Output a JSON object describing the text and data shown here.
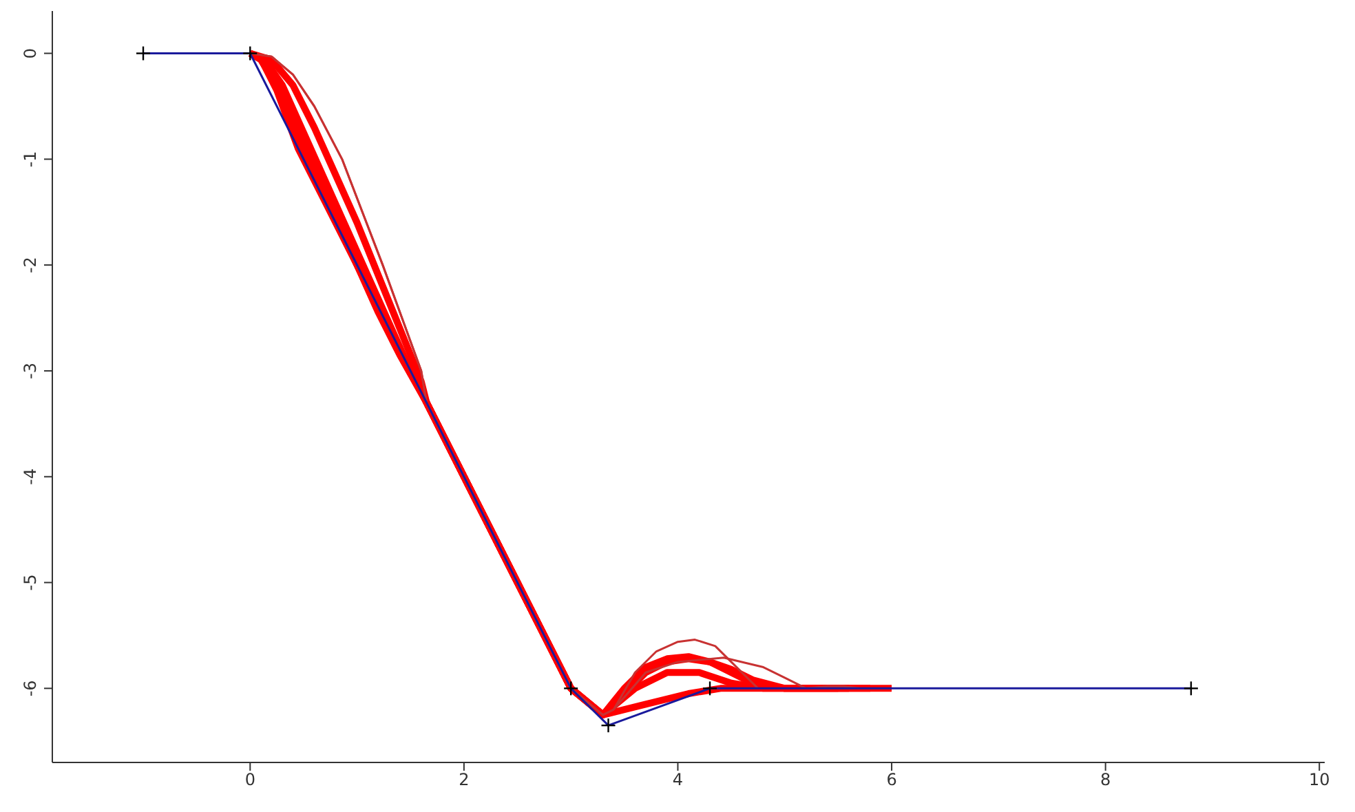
{
  "chart_data": {
    "type": "line",
    "xlim": [
      -1.85,
      10.05
    ],
    "ylim": [
      -6.7,
      0.4
    ],
    "xticks": [
      0,
      2,
      4,
      6,
      8,
      {
        "value": 10,
        "label": "10"
      }
    ],
    "yticks": [
      0,
      -1,
      -2,
      -3,
      -4,
      -5,
      -6
    ],
    "line_style": "solid",
    "series": [
      {
        "color": "#ff0000",
        "marker": "none",
        "x": [
          0,
          0.1,
          0.25,
          0.45,
          0.7,
          1.0,
          1.65,
          2,
          2.5,
          3,
          3.3,
          3.7,
          4.1,
          4.4,
          5.5
        ],
        "values": [
          0,
          -0.05,
          -0.35,
          -0.9,
          -1.4,
          -2.0,
          -3.3,
          -4,
          -5,
          -6,
          -6.25,
          -6.15,
          -6.05,
          -6.0,
          -6
        ]
      },
      {
        "color": "#ff0000",
        "marker": "none",
        "x": [
          0,
          0.1,
          0.25,
          0.4,
          0.6,
          0.8,
          1.0,
          1.2,
          1.4,
          1.65,
          2,
          2.5,
          3,
          3.3,
          3.6,
          3.9,
          4.2,
          4.5,
          4.8,
          5.8
        ],
        "values": [
          0,
          -0.06,
          -0.3,
          -0.65,
          -1.1,
          -1.55,
          -2.0,
          -2.45,
          -2.85,
          -3.3,
          -4,
          -5,
          -6,
          -6.25,
          -6.0,
          -5.85,
          -5.85,
          -5.95,
          -6,
          -6
        ]
      },
      {
        "color": "#ff0000",
        "marker": "none",
        "x": [
          0,
          0.15,
          0.3,
          0.5,
          0.7,
          0.9,
          1.1,
          1.3,
          1.5,
          1.65,
          2,
          2.5,
          3,
          3.3,
          3.5,
          3.7,
          3.9,
          4.1,
          4.3,
          4.5,
          4.7,
          5,
          6
        ],
        "values": [
          0,
          -0.08,
          -0.3,
          -0.75,
          -1.2,
          -1.65,
          -2.1,
          -2.55,
          -3.0,
          -3.3,
          -4,
          -5,
          -6,
          -6.25,
          -6.05,
          -5.85,
          -5.75,
          -5.72,
          -5.75,
          -5.85,
          -5.95,
          -6,
          -6
        ]
      },
      {
        "color": "#ff0000",
        "marker": "none",
        "x": [
          0,
          0.2,
          0.4,
          0.6,
          0.8,
          1.0,
          1.2,
          1.4,
          1.6,
          1.65,
          2,
          2.5,
          3,
          3.3,
          3.5,
          3.7,
          3.9,
          4.1,
          4.3,
          4.5,
          4.7,
          5,
          5.6
        ],
        "values": [
          0,
          -0.06,
          -0.3,
          -0.7,
          -1.15,
          -1.6,
          -2.1,
          -2.6,
          -3.1,
          -3.3,
          -4,
          -5,
          -6,
          -6.25,
          -6.0,
          -5.8,
          -5.72,
          -5.7,
          -5.75,
          -5.82,
          -5.92,
          -6,
          -6
        ]
      },
      {
        "color": "#c83232",
        "marker": "none",
        "x": [
          0,
          0.2,
          0.4,
          0.6,
          0.86,
          1.05,
          1.24,
          1.42,
          1.6,
          1.65,
          2,
          2.5,
          3,
          3.3,
          3.4,
          3.6,
          3.8,
          4.0,
          4.16,
          4.35,
          4.55,
          4.75
        ],
        "values": [
          0,
          -0.03,
          -0.2,
          -0.5,
          -1,
          -1.5,
          -2,
          -2.5,
          -3,
          -3.3,
          -4,
          -5,
          -6,
          -6.25,
          -6.2,
          -5.85,
          -5.65,
          -5.56,
          -5.54,
          -5.6,
          -5.8,
          -6
        ]
      },
      {
        "color": "#c83232",
        "marker": "none",
        "x": [
          0,
          0.2,
          0.4,
          0.6,
          0.86,
          1.05,
          1.24,
          1.42,
          1.6,
          1.65,
          2,
          2.5,
          3,
          3.3,
          3.4,
          3.7,
          4.0,
          4.43,
          4.8,
          5.0,
          5.2,
          5.4,
          5.55,
          5.7
        ],
        "values": [
          0,
          -0.03,
          -0.2,
          -0.5,
          -1,
          -1.5,
          -2,
          -2.5,
          -3,
          -3.3,
          -4,
          -5,
          -6,
          -6.25,
          -6.2,
          -5.85,
          -5.75,
          -5.71,
          -5.8,
          -5.9,
          -6,
          -5.98,
          -5.98,
          -6
        ]
      },
      {
        "color": "#1a1a9c",
        "marker": "cross",
        "x": [
          -1,
          0,
          3,
          3.35,
          4.3,
          8.8
        ],
        "values": [
          0,
          0,
          -6,
          -6.35,
          -6,
          -6
        ]
      }
    ]
  }
}
